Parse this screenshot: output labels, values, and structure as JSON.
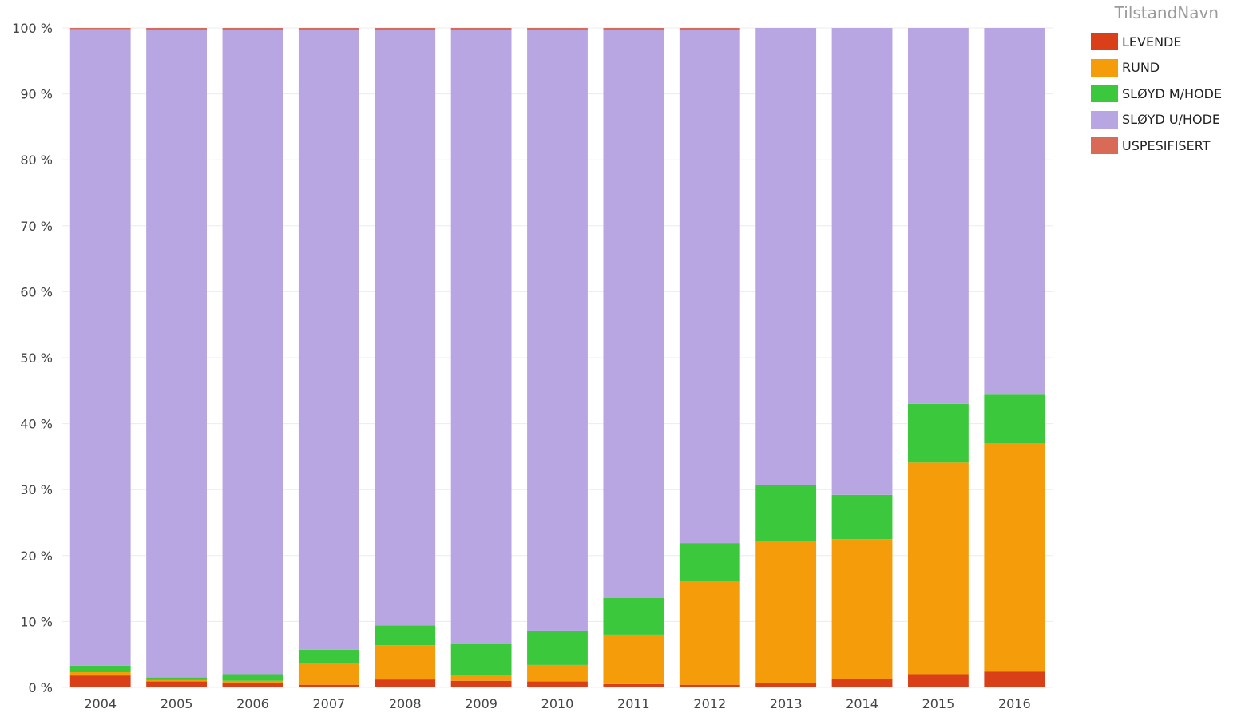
{
  "chart_data": {
    "type": "bar",
    "stacked": true,
    "percent": true,
    "categories": [
      "2004",
      "2005",
      "2006",
      "2007",
      "2008",
      "2009",
      "2010",
      "2011",
      "2012",
      "2013",
      "2014",
      "2015",
      "2016"
    ],
    "y_ticks": [
      "0 %",
      "10 %",
      "20 %",
      "30 %",
      "40 %",
      "50 %",
      "60 %",
      "70 %",
      "80 %",
      "90 %",
      "100 %"
    ],
    "ylim": [
      0,
      100
    ],
    "grid": true,
    "legend": {
      "title": "TilstandNavn",
      "position": "top-right"
    },
    "series": [
      {
        "name": "LEVENDE",
        "color": "#D9401A",
        "values": [
          1.8,
          0.9,
          0.7,
          0.4,
          1.2,
          1.0,
          0.9,
          0.5,
          0.4,
          0.7,
          1.3,
          2.0,
          2.4
        ]
      },
      {
        "name": "RUND",
        "color": "#F59C0B",
        "values": [
          0.5,
          0.2,
          0.3,
          3.3,
          5.2,
          0.9,
          2.5,
          7.5,
          15.7,
          21.5,
          21.2,
          32.1,
          34.6
        ]
      },
      {
        "name": "SLØYD M/HODE",
        "color": "#3CC83C",
        "values": [
          1.0,
          0.4,
          1.0,
          2.0,
          3.0,
          4.8,
          5.2,
          5.6,
          5.8,
          8.5,
          6.7,
          8.9,
          7.4
        ]
      },
      {
        "name": "SLØYD U/HODE",
        "color": "#B8A6E2",
        "values": [
          96.5,
          98.2,
          97.7,
          94.0,
          90.3,
          93.0,
          91.1,
          86.1,
          77.8,
          69.3,
          70.8,
          57.0,
          55.6
        ]
      },
      {
        "name": "USPESIFISERT",
        "color": "#D96A55",
        "values": [
          0.2,
          0.3,
          0.3,
          0.3,
          0.3,
          0.3,
          0.3,
          0.3,
          0.3,
          0.0,
          0.0,
          0.0,
          0.0
        ]
      }
    ]
  }
}
